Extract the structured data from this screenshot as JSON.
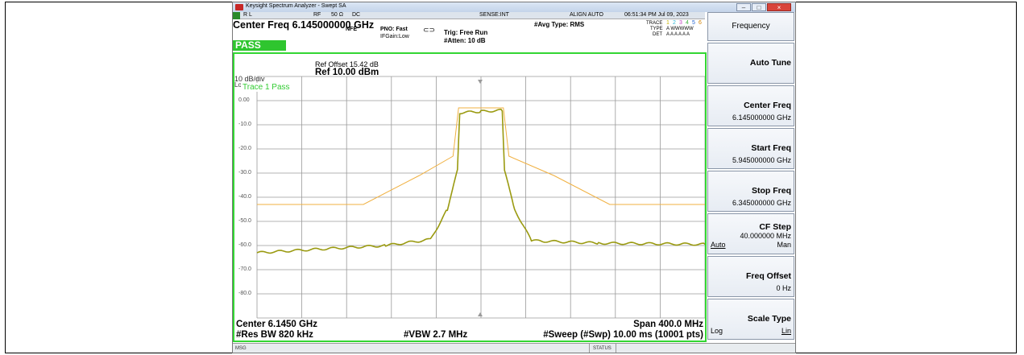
{
  "window": {
    "title": "Keysight Spectrum Analyzer - Swept SA",
    "buttons": {
      "minimize": "–",
      "maximize": "□",
      "close": "×"
    }
  },
  "status_bar_top": {
    "rl": "R L",
    "rf": "RF",
    "impedance": "50 Ω",
    "dc": "DC",
    "sense": "SENSE:INT",
    "align": "ALIGN AUTO",
    "timestamp": "06:51:34 PM Jul 09, 2023"
  },
  "header": {
    "center_freq_title": "Center Freq 6.145000000 GHz",
    "nfe": "NFE",
    "pno": "PNO: Fast",
    "ifgain": "IFGain:Low",
    "trig": "Trig: Free Run",
    "atten": "#Atten: 10 dB",
    "avg_type": "#Avg Type: RMS",
    "pass_label": "PASS",
    "trace_label": "TRACE",
    "trace_nums": [
      "1",
      "2",
      "3",
      "4",
      "5",
      "6"
    ],
    "type_label": "TYPE",
    "type_value": "A WWWWW",
    "det_label": "DET",
    "det_value": "A A A A A A"
  },
  "plot": {
    "ref_offset": "Ref Offset 15.42 dB",
    "scale": "10 dB/div",
    "ref_level": "Ref 10.00 dBm",
    "log": "Log",
    "trace_pass": "Trace 1 Pass",
    "y_labels": [
      "0.00",
      "-10.0",
      "-20.0",
      "-30.0",
      "-40.0",
      "-50.0",
      "-60.0",
      "-70.0",
      "-80.0"
    ]
  },
  "footer": {
    "center": "Center 6.1450 GHz",
    "span": "Span 400.0 MHz",
    "res_bw": "#Res BW 820 kHz",
    "vbw": "#VBW 2.7 MHz",
    "sweep": "#Sweep (#Swp)  10.00 ms (10001 pts)"
  },
  "status": {
    "msg": "MSG",
    "status": "STATUS"
  },
  "softkeys": {
    "menu_title": "Frequency",
    "auto_tune": "Auto Tune",
    "center_freq": {
      "label": "Center Freq",
      "value": "6.145000000 GHz"
    },
    "start_freq": {
      "label": "Start Freq",
      "value": "5.945000000 GHz"
    },
    "stop_freq": {
      "label": "Stop Freq",
      "value": "6.345000000 GHz"
    },
    "cf_step": {
      "label": "CF Step",
      "value": "40.000000 MHz",
      "auto": "Auto",
      "man": "Man"
    },
    "freq_offset": {
      "label": "Freq Offset",
      "value": "0 Hz"
    },
    "scale_type": {
      "label": "Scale Type",
      "log": "Log",
      "lin": "Lin"
    }
  },
  "colors": {
    "trace": "#9a9a10",
    "limit": "#f0b040",
    "pass": "#2fc52f",
    "border": "#33d633"
  },
  "chart_data": {
    "type": "line",
    "xlabel": "",
    "ylabel": "",
    "xlim": [
      5.945,
      6.345
    ],
    "ylim": [
      -90,
      10
    ],
    "series": [
      {
        "x": [
          5.945,
          6.04,
          6.09,
          6.12,
          6.125,
          6.165,
          6.17,
          6.21,
          6.26,
          6.345
        ],
        "y": [
          -43,
          -43,
          -31,
          -23,
          -3,
          -3,
          -23,
          -31,
          -43,
          -43
        ]
      },
      {
        "x": [
          5.945,
          6.0,
          6.06,
          6.1,
          6.115,
          6.124,
          6.126,
          6.145,
          6.164,
          6.166,
          6.175,
          6.19,
          6.25,
          6.345
        ],
        "y": [
          -63,
          -61.5,
          -60,
          -57.5,
          -45,
          -29,
          -5,
          -4.5,
          -4,
          -29,
          -45,
          -58,
          -59,
          -59.5
        ]
      }
    ]
  }
}
